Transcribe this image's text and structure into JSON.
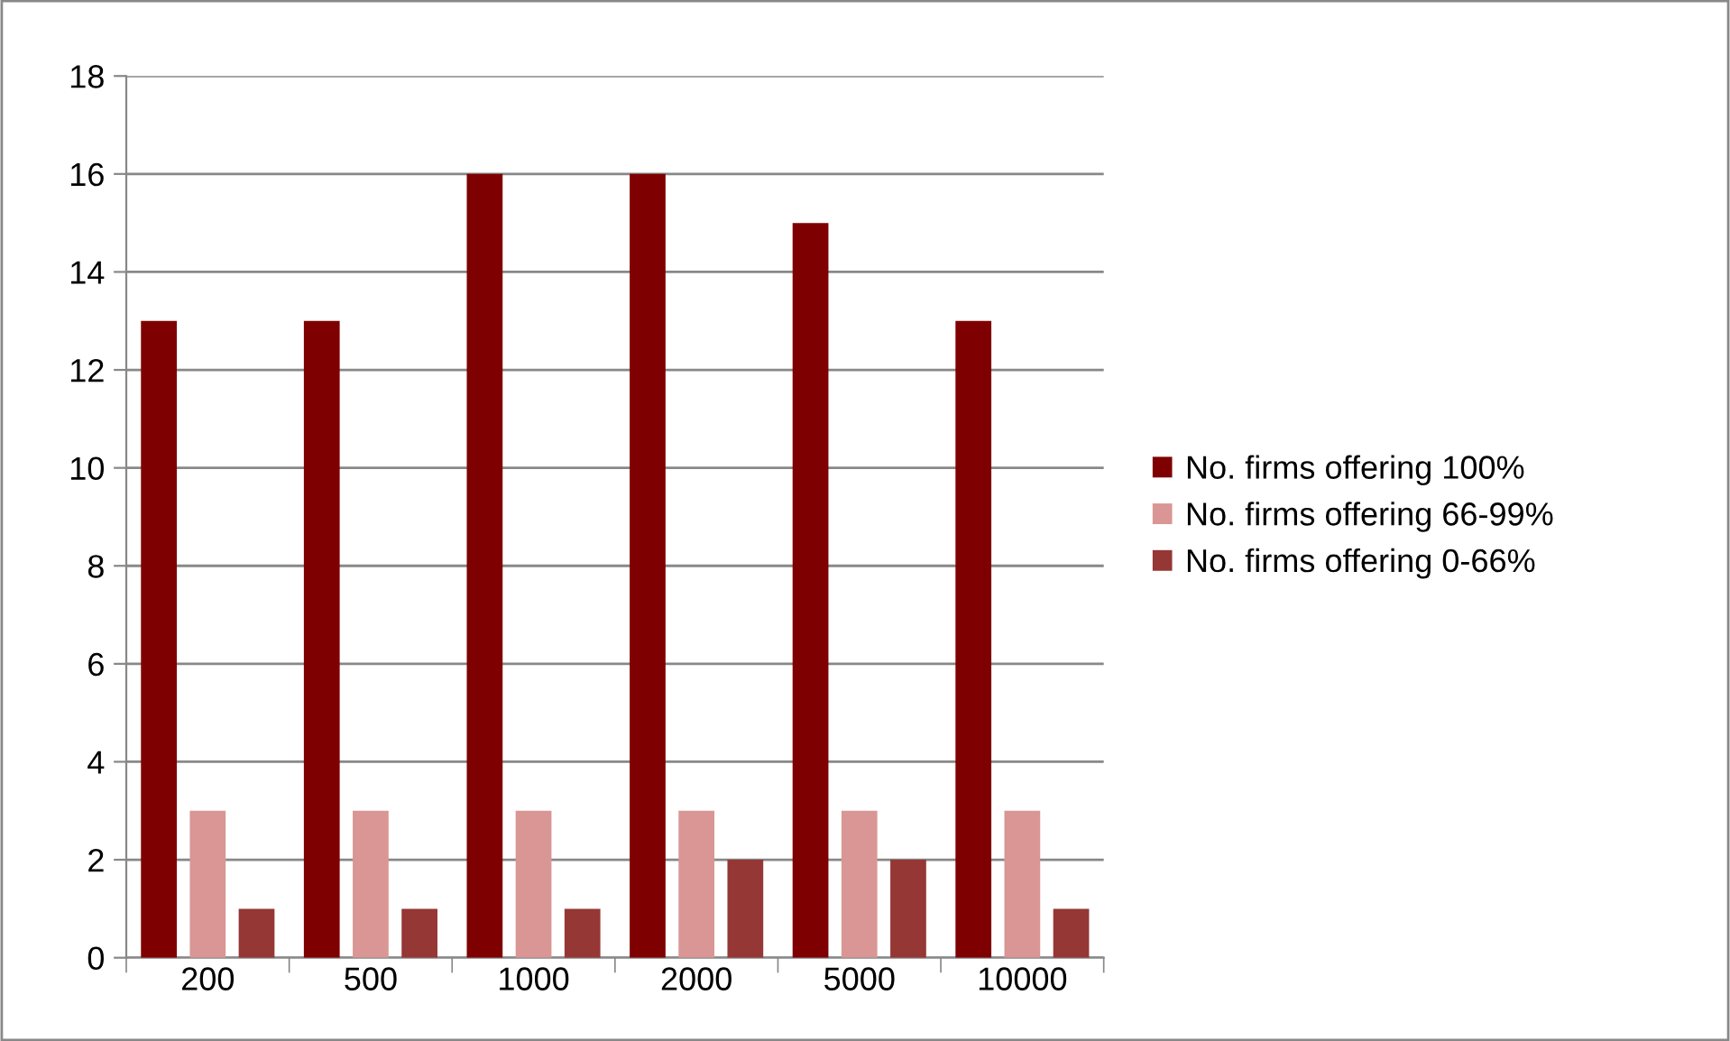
{
  "chart_data": {
    "type": "bar",
    "categories": [
      "200",
      "500",
      "1000",
      "2000",
      "5000",
      "10000"
    ],
    "series": [
      {
        "name": "No. firms offering 100%",
        "color": "#7f0000",
        "values": [
          13,
          13,
          16,
          16,
          15,
          13
        ]
      },
      {
        "name": "No. firms offering 66-99%",
        "color": "#d99694",
        "values": [
          3,
          3,
          3,
          3,
          3,
          3
        ]
      },
      {
        "name": "No. firms offering 0-66%",
        "color": "#953735",
        "values": [
          1,
          1,
          1,
          2,
          2,
          1
        ]
      }
    ],
    "ylim": [
      0,
      18
    ],
    "yticks": [
      0,
      2,
      4,
      6,
      8,
      10,
      12,
      14,
      16,
      18
    ],
    "grid": "y",
    "legend": "right"
  }
}
